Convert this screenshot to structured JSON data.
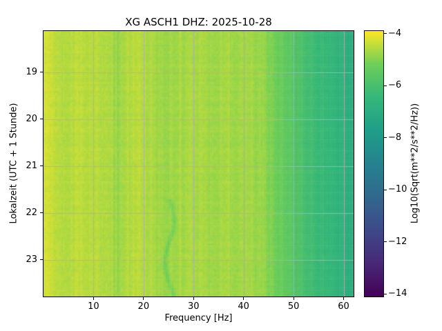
{
  "chart_data": {
    "type": "heatmap",
    "title": "XG ASCH1  DHZ: 2025-10-28",
    "xlabel": "Frequency [Hz]",
    "ylabel": "Lokalzeit (UTC + 1 Stunde)",
    "colorbar_label": "Log10(Sqrt(m**2/s**2/Hz))",
    "x_range_hz": [
      0,
      62
    ],
    "x_ticks": [
      10,
      20,
      30,
      40,
      50,
      60
    ],
    "x_tick_labels": [
      "10",
      "20",
      "30",
      "40",
      "50",
      "60"
    ],
    "y_range_hours": [
      18.12,
      23.78
    ],
    "y_ticks": [
      19,
      20,
      21,
      22,
      23
    ],
    "y_tick_labels": [
      "19",
      "20",
      "21",
      "22",
      "23"
    ],
    "colorbar_range": [
      -14.1,
      -3.9
    ],
    "colorbar_ticks": [
      -4,
      -6,
      -8,
      -10,
      -12,
      -14
    ],
    "colorbar_tick_labels": [
      "−4",
      "−6",
      "−8",
      "−10",
      "−12",
      "−14"
    ],
    "colormap": "viridis",
    "colormap_stops": [
      [
        0.0,
        "#440154"
      ],
      [
        0.125,
        "#482878"
      ],
      [
        0.25,
        "#3e4989"
      ],
      [
        0.375,
        "#31688e"
      ],
      [
        0.5,
        "#26828e"
      ],
      [
        0.625,
        "#1f9e89"
      ],
      [
        0.75,
        "#35b779"
      ],
      [
        0.875,
        "#6ece58"
      ],
      [
        1.0,
        "#fde725"
      ]
    ],
    "grid": true,
    "grid_color": "#b0b0b0",
    "freq_bins_hz": [
      1,
      3,
      5,
      7,
      9,
      11,
      13,
      15,
      17,
      19,
      21,
      23,
      25,
      27,
      29,
      31,
      33,
      35,
      37,
      39,
      41,
      43,
      45,
      47,
      49,
      51,
      53,
      55,
      57,
      59,
      61
    ],
    "mean_log10_amplitude": [
      -4.3,
      -4.5,
      -4.55,
      -4.5,
      -4.55,
      -4.5,
      -4.6,
      -4.8,
      -4.55,
      -4.5,
      -4.62,
      -4.7,
      -4.75,
      -4.65,
      -4.68,
      -4.62,
      -4.7,
      -4.72,
      -4.68,
      -4.72,
      -4.72,
      -4.78,
      -4.95,
      -5.25,
      -5.55,
      -5.85,
      -6.1,
      -6.35,
      -6.4,
      -6.65,
      -6.9
    ],
    "noise_texture": 0.16,
    "spectral_line": {
      "center_hz": 25.2,
      "wiggle_hz": 0.9,
      "from_hour": 21.7,
      "depth_log10": 0.35
    }
  }
}
